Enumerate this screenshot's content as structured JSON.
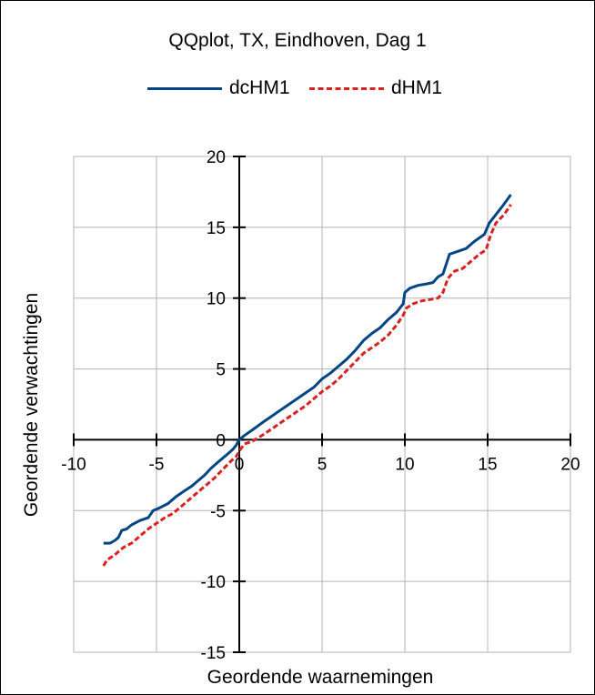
{
  "chart_data": {
    "type": "line",
    "title": "QQplot, TX, Eindhoven, Dag 1",
    "xlabel": "Geordende waarnemingen",
    "ylabel": "Geordende verwachtingen",
    "xlim": [
      -10,
      20
    ],
    "ylim": [
      -15,
      20
    ],
    "xticks": [
      -10,
      -5,
      0,
      5,
      10,
      15,
      20
    ],
    "yticks": [
      -15,
      -10,
      -5,
      0,
      5,
      10,
      15,
      20
    ],
    "grid": true,
    "legend": "top",
    "series": [
      {
        "name": "dcHM1",
        "color": "#004586",
        "dash": "solid",
        "points": [
          [
            -8.2,
            -7.3
          ],
          [
            -7.8,
            -7.3
          ],
          [
            -7.5,
            -7.1
          ],
          [
            -7.3,
            -6.9
          ],
          [
            -7.1,
            -6.4
          ],
          [
            -6.8,
            -6.3
          ],
          [
            -6.5,
            -6.0
          ],
          [
            -6.0,
            -5.7
          ],
          [
            -5.5,
            -5.5
          ],
          [
            -5.2,
            -5.0
          ],
          [
            -4.8,
            -4.8
          ],
          [
            -4.3,
            -4.5
          ],
          [
            -3.8,
            -4.0
          ],
          [
            -3.3,
            -3.6
          ],
          [
            -2.9,
            -3.3
          ],
          [
            -2.5,
            -2.9
          ],
          [
            -2.1,
            -2.5
          ],
          [
            -1.7,
            -2.0
          ],
          [
            -1.3,
            -1.6
          ],
          [
            -0.8,
            -1.1
          ],
          [
            -0.4,
            -0.7
          ],
          [
            -0.2,
            -0.4
          ],
          [
            0.0,
            0.0
          ],
          [
            0.3,
            0.3
          ],
          [
            0.8,
            0.7
          ],
          [
            1.5,
            1.3
          ],
          [
            2.0,
            1.7
          ],
          [
            2.5,
            2.1
          ],
          [
            3.0,
            2.5
          ],
          [
            3.5,
            2.9
          ],
          [
            4.0,
            3.3
          ],
          [
            4.5,
            3.7
          ],
          [
            5.0,
            4.3
          ],
          [
            5.5,
            4.7
          ],
          [
            6.0,
            5.2
          ],
          [
            6.5,
            5.7
          ],
          [
            7.0,
            6.3
          ],
          [
            7.5,
            7.0
          ],
          [
            8.0,
            7.5
          ],
          [
            8.5,
            7.9
          ],
          [
            9.0,
            8.5
          ],
          [
            9.5,
            9.0
          ],
          [
            9.9,
            9.6
          ],
          [
            10.0,
            10.4
          ],
          [
            10.3,
            10.7
          ],
          [
            10.8,
            10.9
          ],
          [
            11.3,
            11.0
          ],
          [
            11.7,
            11.1
          ],
          [
            12.0,
            11.5
          ],
          [
            12.3,
            11.7
          ],
          [
            12.5,
            12.4
          ],
          [
            12.7,
            13.1
          ],
          [
            13.2,
            13.3
          ],
          [
            13.7,
            13.5
          ],
          [
            14.2,
            14.0
          ],
          [
            14.8,
            14.5
          ],
          [
            15.1,
            15.3
          ],
          [
            15.5,
            15.9
          ],
          [
            15.9,
            16.5
          ],
          [
            16.4,
            17.3
          ]
        ]
      },
      {
        "name": "dHM1",
        "color": "#d92121",
        "dash": "dashed",
        "points": [
          [
            -8.2,
            -8.9
          ],
          [
            -8.0,
            -8.5
          ],
          [
            -7.5,
            -8.1
          ],
          [
            -7.0,
            -7.6
          ],
          [
            -6.5,
            -7.3
          ],
          [
            -6.0,
            -6.8
          ],
          [
            -5.5,
            -6.3
          ],
          [
            -5.0,
            -5.9
          ],
          [
            -4.5,
            -5.5
          ],
          [
            -4.0,
            -5.2
          ],
          [
            -3.5,
            -4.7
          ],
          [
            -3.0,
            -4.2
          ],
          [
            -2.5,
            -3.7
          ],
          [
            -2.0,
            -3.2
          ],
          [
            -1.5,
            -2.7
          ],
          [
            -1.0,
            -2.1
          ],
          [
            -0.5,
            -1.5
          ],
          [
            -0.2,
            -1.2
          ],
          [
            0.0,
            -0.8
          ],
          [
            0.3,
            -0.3
          ],
          [
            0.8,
            -0.1
          ],
          [
            1.5,
            0.4
          ],
          [
            2.0,
            0.8
          ],
          [
            2.5,
            1.2
          ],
          [
            3.0,
            1.6
          ],
          [
            3.5,
            2.0
          ],
          [
            4.0,
            2.4
          ],
          [
            4.5,
            2.9
          ],
          [
            5.0,
            3.4
          ],
          [
            5.5,
            3.8
          ],
          [
            6.0,
            4.3
          ],
          [
            6.5,
            4.9
          ],
          [
            7.0,
            5.5
          ],
          [
            7.5,
            6.1
          ],
          [
            8.0,
            6.5
          ],
          [
            8.5,
            6.9
          ],
          [
            9.0,
            7.4
          ],
          [
            9.5,
            8.1
          ],
          [
            9.9,
            8.8
          ],
          [
            10.1,
            9.3
          ],
          [
            10.5,
            9.6
          ],
          [
            11.0,
            9.8
          ],
          [
            11.5,
            9.9
          ],
          [
            12.0,
            10.0
          ],
          [
            12.3,
            10.4
          ],
          [
            12.6,
            11.4
          ],
          [
            13.0,
            11.9
          ],
          [
            13.5,
            12.1
          ],
          [
            14.0,
            12.6
          ],
          [
            14.5,
            13.1
          ],
          [
            14.9,
            13.4
          ],
          [
            15.2,
            14.5
          ],
          [
            15.5,
            15.3
          ],
          [
            16.0,
            15.9
          ],
          [
            16.4,
            16.6
          ]
        ]
      }
    ]
  }
}
